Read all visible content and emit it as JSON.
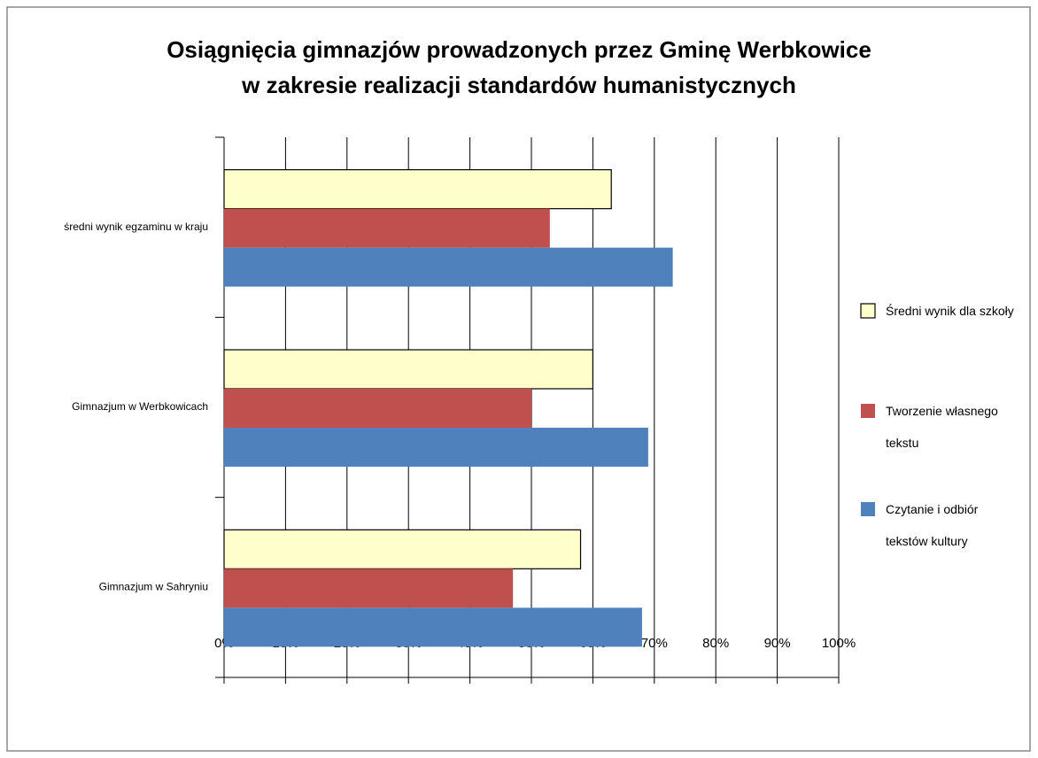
{
  "chart_data": {
    "type": "bar",
    "orientation": "horizontal",
    "title": [
      "Osiągnięcia gimnazjów prowadzonych przez Gminę Werbkowice",
      "w zakresie realizacji standardów humanistycznych"
    ],
    "categories": [
      "średni wynik egzaminu w kraju",
      "Gimnazjum w Werbkowicach",
      "Gimnazjum w Sahryniu"
    ],
    "series": [
      {
        "name": "Średni wynik dla szkoły",
        "color": "#ffffcc",
        "values": [
          63,
          60,
          58
        ]
      },
      {
        "name": "Tworzenie własnego tekstu",
        "color": "#c0504d",
        "values": [
          53,
          50,
          47
        ]
      },
      {
        "name": "Czytanie i odbiór tekstów kultury",
        "color": "#4f81bd",
        "values": [
          73,
          69,
          68
        ]
      }
    ],
    "xlim": [
      0,
      100
    ],
    "xticks": [
      {
        "value": 0,
        "label": "0%"
      },
      {
        "value": 10,
        "label": "10%"
      },
      {
        "value": 20,
        "label": "20%"
      },
      {
        "value": 30,
        "label": "30%"
      },
      {
        "value": 40,
        "label": "40%"
      },
      {
        "value": 50,
        "label": "50%"
      },
      {
        "value": 60,
        "label": "60%"
      },
      {
        "value": 70,
        "label": "70%"
      },
      {
        "value": 80,
        "label": "80%"
      },
      {
        "value": 90,
        "label": "90%"
      },
      {
        "value": 100,
        "label": "100%"
      }
    ],
    "grid": true,
    "legend": "right"
  }
}
